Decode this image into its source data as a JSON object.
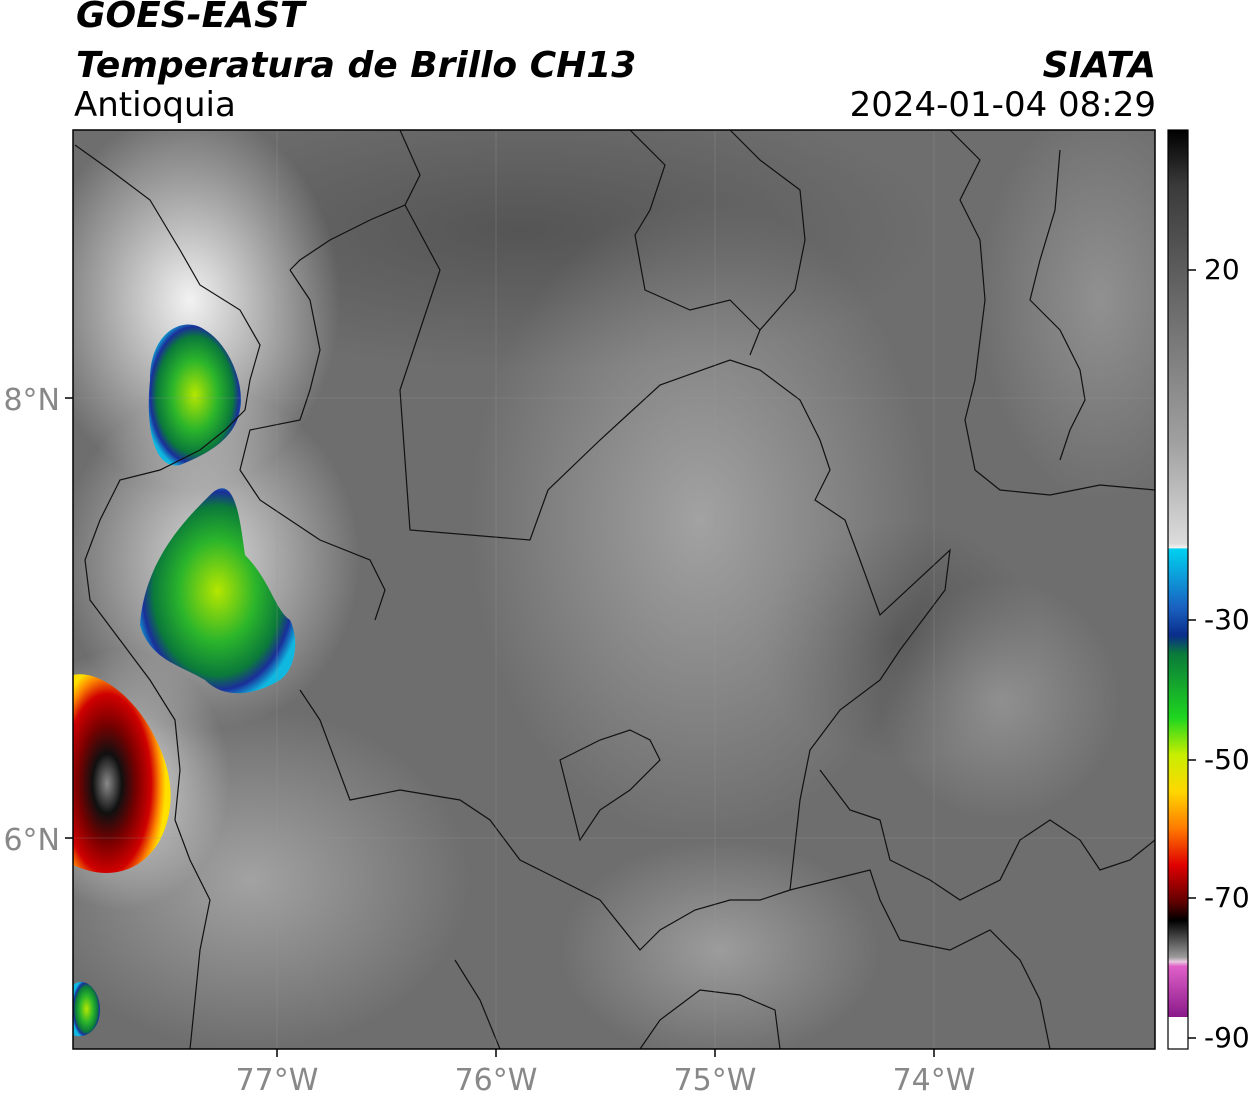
{
  "header": {
    "satellite": "GOES-EAST",
    "product": "Temperatura de Brillo CH13",
    "region": "Antioquia",
    "organization": "SIATA",
    "datetime": "2024-01-04 08:29"
  },
  "map": {
    "lat_ticks": [
      "8°N",
      "6°N"
    ],
    "lon_ticks": [
      "77°W",
      "76°W",
      "75°W",
      "74°W"
    ]
  },
  "colorbar": {
    "labels": [
      "20",
      "-30",
      "-50",
      "-70",
      "-90"
    ],
    "colors": {
      "warm_dark": "#3a3a3a",
      "mid_gray": "#8c8c8c",
      "light_gray": "#e6e6e6",
      "cyan": "#00c8e6",
      "blue": "#1a3fa0",
      "green": "#1fae2a",
      "yellow_green": "#a6e600",
      "yellow": "#ffd700",
      "orange": "#ff6a00",
      "red": "#d00000",
      "dark_red": "#5a0000",
      "black": "#000000",
      "pink": "#e066c8",
      "purple": "#8a1a8a"
    }
  }
}
